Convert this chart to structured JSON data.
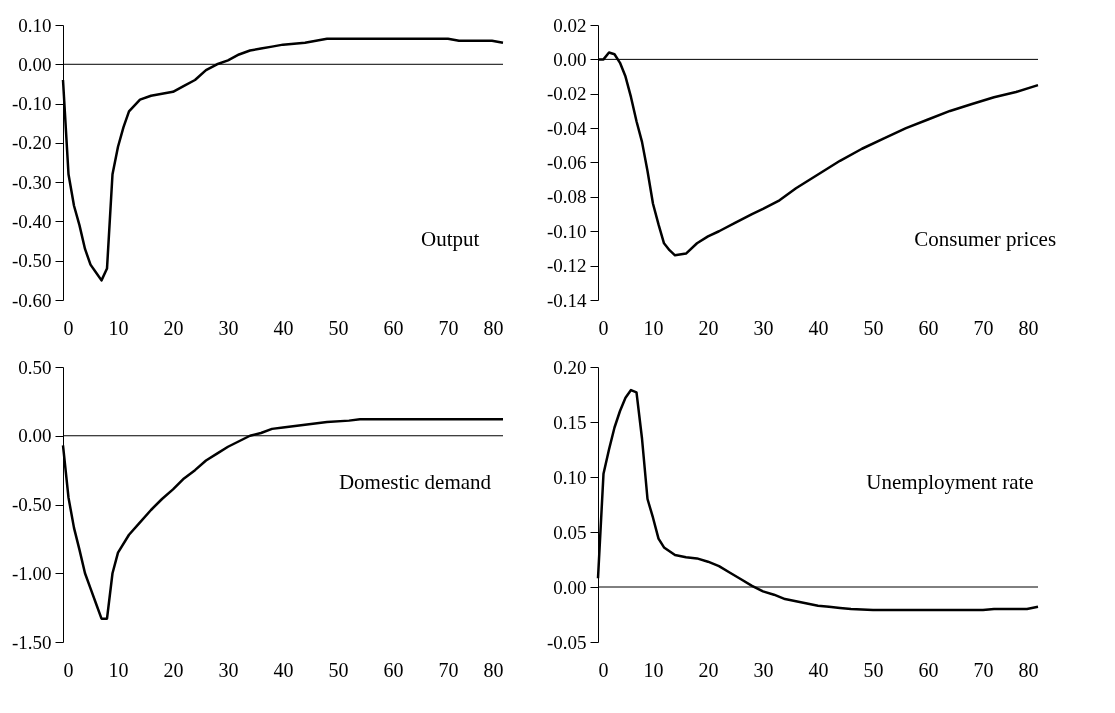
{
  "chart_data": [
    {
      "type": "line",
      "annotations": [
        "Output"
      ],
      "xlim": [
        0,
        80
      ],
      "xticks": [
        0,
        10,
        20,
        30,
        40,
        50,
        60,
        70,
        80
      ],
      "ylim": [
        -0.6,
        0.1
      ],
      "yticks": [
        {
          "value": -0.6,
          "label": "-0.60"
        },
        {
          "value": -0.5,
          "label": "-0.50"
        },
        {
          "value": -0.4,
          "label": "-0.40"
        },
        {
          "value": -0.3,
          "label": "-0.30"
        },
        {
          "value": -0.2,
          "label": "-0.20"
        },
        {
          "value": -0.1,
          "label": "-0.10"
        },
        {
          "value": 0,
          "label": "0.00"
        },
        {
          "value": 0.1,
          "label": "0.10"
        }
      ],
      "ref_lines": [
        {
          "axis": "y",
          "value": 0,
          "color": "#000000"
        }
      ],
      "grid": false,
      "series": [
        {
          "color": "#000000",
          "x": [
            0,
            1,
            2,
            3,
            4,
            5,
            6,
            7,
            8,
            9,
            10,
            11,
            12,
            14,
            16,
            18,
            20,
            22,
            24,
            26,
            28,
            30,
            32,
            34,
            36,
            38,
            40,
            44,
            48,
            55,
            70,
            72,
            78,
            80
          ],
          "values": [
            -0.04,
            -0.28,
            -0.36,
            -0.41,
            -0.47,
            -0.51,
            -0.53,
            -0.55,
            -0.52,
            -0.28,
            -0.21,
            -0.16,
            -0.12,
            -0.09,
            -0.08,
            -0.075,
            -0.07,
            -0.055,
            -0.04,
            -0.015,
            0.0,
            0.01,
            0.025,
            0.035,
            0.04,
            0.045,
            0.05,
            0.055,
            0.065,
            0.065,
            0.065,
            0.06,
            0.06,
            0.055
          ]
        }
      ]
    },
    {
      "type": "line",
      "annotations": [
        "Consumer prices"
      ],
      "xlim": [
        0,
        80
      ],
      "xticks": [
        0,
        10,
        20,
        30,
        40,
        50,
        60,
        70,
        80
      ],
      "ylim": [
        -0.14,
        0.02
      ],
      "yticks": [
        {
          "value": -0.14,
          "label": "-0.14"
        },
        {
          "value": -0.12,
          "label": "-0.12"
        },
        {
          "value": -0.1,
          "label": "-0.10"
        },
        {
          "value": -0.08,
          "label": "-0.08"
        },
        {
          "value": -0.06,
          "label": "-0.06"
        },
        {
          "value": -0.04,
          "label": "-0.04"
        },
        {
          "value": -0.02,
          "label": "-0.02"
        },
        {
          "value": 0,
          "label": "0.00"
        },
        {
          "value": 0.02,
          "label": "0.02"
        }
      ],
      "ref_lines": [
        {
          "axis": "y",
          "value": 0,
          "color": "#000000"
        }
      ],
      "grid": false,
      "series": [
        {
          "color": "#000000",
          "x": [
            0,
            1,
            2,
            3,
            4,
            5,
            6,
            7,
            8,
            9,
            10,
            11,
            12,
            13,
            14,
            16,
            18,
            20,
            22,
            25,
            28,
            30,
            33,
            36,
            40,
            44,
            48,
            52,
            56,
            60,
            64,
            68,
            72,
            76,
            80
          ],
          "values": [
            0,
            0,
            0.004,
            0.003,
            -0.002,
            -0.01,
            -0.022,
            -0.036,
            -0.048,
            -0.065,
            -0.084,
            -0.096,
            -0.107,
            -0.111,
            -0.114,
            -0.113,
            -0.107,
            -0.103,
            -0.1,
            -0.095,
            -0.09,
            -0.087,
            -0.082,
            -0.075,
            -0.067,
            -0.059,
            -0.052,
            -0.046,
            -0.04,
            -0.035,
            -0.03,
            -0.026,
            -0.022,
            -0.019,
            -0.015
          ]
        }
      ]
    },
    {
      "type": "line",
      "annotations": [
        "Domestic demand"
      ],
      "xlim": [
        0,
        80
      ],
      "xticks": [
        0,
        10,
        20,
        30,
        40,
        50,
        60,
        70,
        80
      ],
      "ylim": [
        -1.5,
        0.5
      ],
      "yticks": [
        {
          "value": -1.5,
          "label": "-1.50"
        },
        {
          "value": -1.0,
          "label": "-1.00"
        },
        {
          "value": -0.5,
          "label": "-0.50"
        },
        {
          "value": 0,
          "label": "0.00"
        },
        {
          "value": 0.5,
          "label": "0.50"
        }
      ],
      "ref_lines": [
        {
          "axis": "y",
          "value": 0,
          "color": "#000000"
        }
      ],
      "grid": false,
      "series": [
        {
          "color": "#000000",
          "x": [
            0,
            1,
            2,
            3,
            4,
            5,
            6,
            7,
            8,
            9,
            10,
            12,
            14,
            16,
            18,
            20,
            22,
            24,
            26,
            28,
            30,
            32,
            34,
            36,
            38,
            40,
            44,
            48,
            52,
            54,
            80
          ],
          "values": [
            -0.07,
            -0.45,
            -0.67,
            -0.83,
            -1.0,
            -1.11,
            -1.22,
            -1.33,
            -1.33,
            -1.0,
            -0.85,
            -0.72,
            -0.63,
            -0.54,
            -0.46,
            -0.39,
            -0.31,
            -0.25,
            -0.18,
            -0.13,
            -0.08,
            -0.04,
            0.0,
            0.02,
            0.05,
            0.06,
            0.08,
            0.1,
            0.11,
            0.12,
            0.12
          ]
        }
      ]
    },
    {
      "type": "line",
      "annotations": [
        "Unemployment rate"
      ],
      "xlim": [
        0,
        80
      ],
      "xticks": [
        0,
        10,
        20,
        30,
        40,
        50,
        60,
        70,
        80
      ],
      "ylim": [
        -0.05,
        0.2
      ],
      "yticks": [
        {
          "value": -0.05,
          "label": "-0.05"
        },
        {
          "value": 0,
          "label": "0.00"
        },
        {
          "value": 0.05,
          "label": "0.05"
        },
        {
          "value": 0.1,
          "label": "0.10"
        },
        {
          "value": 0.15,
          "label": "0.15"
        },
        {
          "value": 0.2,
          "label": "0.20"
        }
      ],
      "ref_lines": [
        {
          "axis": "y",
          "value": 0,
          "color": "#000000"
        }
      ],
      "grid": false,
      "series": [
        {
          "color": "#000000",
          "x": [
            0,
            1,
            2,
            3,
            4,
            5,
            6,
            7,
            8,
            9,
            10,
            11,
            12,
            14,
            16,
            18,
            20,
            22,
            24,
            26,
            28,
            30,
            32,
            34,
            36,
            38,
            40,
            42,
            44,
            46,
            50,
            60,
            70,
            72,
            78,
            80
          ],
          "values": [
            0.008,
            0.103,
            0.125,
            0.145,
            0.16,
            0.172,
            0.179,
            0.177,
            0.135,
            0.08,
            0.063,
            0.044,
            0.036,
            0.029,
            0.027,
            0.026,
            0.023,
            0.019,
            0.013,
            0.007,
            0.001,
            -0.004,
            -0.007,
            -0.011,
            -0.013,
            -0.015,
            -0.017,
            -0.018,
            -0.019,
            -0.02,
            -0.021,
            -0.021,
            -0.021,
            -0.02,
            -0.02,
            -0.018
          ]
        }
      ]
    }
  ]
}
